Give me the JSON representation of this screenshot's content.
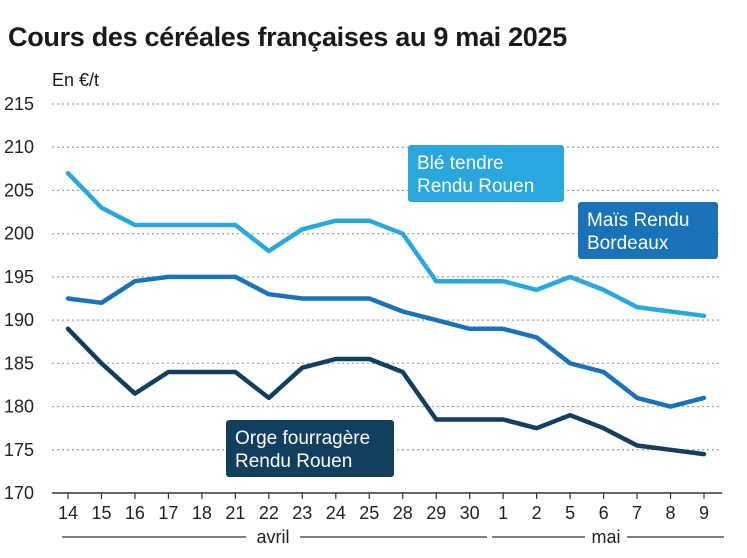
{
  "title": "Cours des céréales françaises au 9 mai 2025",
  "unit_label": "En €/t",
  "chart_data": {
    "type": "line",
    "title": "Cours des céréales françaises au 9 mai 2025",
    "ylabel": "En €/t",
    "xlabel": "",
    "ylim": [
      170,
      215
    ],
    "yticks": [
      170,
      175,
      180,
      185,
      190,
      195,
      200,
      205,
      210,
      215
    ],
    "grid": true,
    "categories": [
      "14",
      "15",
      "16",
      "17",
      "18",
      "21",
      "22",
      "23",
      "24",
      "25",
      "28",
      "29",
      "30",
      "1",
      "2",
      "5",
      "6",
      "7",
      "8",
      "9"
    ],
    "month_groups": [
      {
        "label": "avril",
        "from": 0,
        "to": 12
      },
      {
        "label": "mai",
        "from": 13,
        "to": 19
      }
    ],
    "series": [
      {
        "name": "Blé tendre Rendu Rouen",
        "label_lines": [
          "Blé tendre",
          "Rendu Rouen"
        ],
        "color": "#29a8e0",
        "values": [
          207,
          203,
          201,
          201,
          201,
          201,
          198,
          200.5,
          201.5,
          201.5,
          200,
          194.5,
          194.5,
          194.5,
          193.5,
          195,
          193.5,
          191.5,
          191,
          190.5
        ]
      },
      {
        "name": "Maïs Rendu Bordeaux",
        "label_lines": [
          "Maïs Rendu",
          "Bordeaux"
        ],
        "color": "#1a73b8",
        "values": [
          192.5,
          192,
          194.5,
          195,
          195,
          195,
          193,
          192.5,
          192.5,
          192.5,
          191,
          190,
          189,
          189,
          188,
          185,
          184,
          181,
          180,
          181
        ]
      },
      {
        "name": "Orge fourragère Rendu Rouen",
        "label_lines": [
          "Orge fourragère",
          "Rendu Rouen"
        ],
        "color": "#133f5e",
        "values": [
          189,
          185,
          181.5,
          184,
          184,
          184,
          181,
          184.5,
          185.5,
          185.5,
          184,
          178.5,
          178.5,
          178.5,
          177.5,
          179,
          177.5,
          175.5,
          175,
          174.5
        ]
      }
    ]
  }
}
